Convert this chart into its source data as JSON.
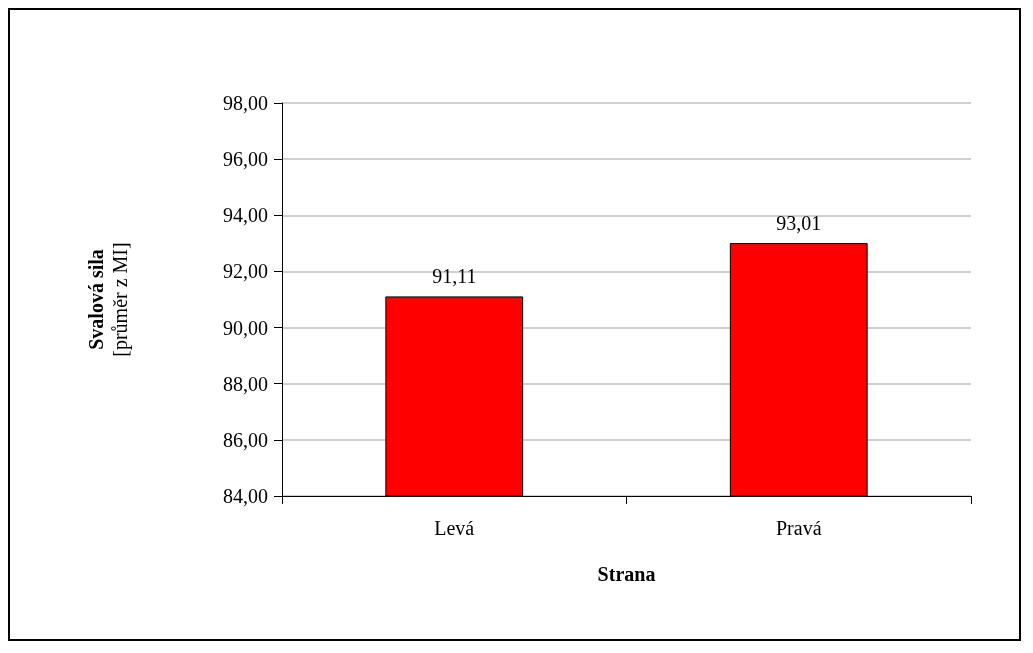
{
  "chart_data": {
    "type": "bar",
    "xlabel": "Strana",
    "ylabel": "Svalová sila\n[průměr z MI]",
    "categories": [
      "Levá",
      "Pravá"
    ],
    "values": [
      91.11,
      93.01
    ],
    "color": "#ff0000",
    "value_labels": [
      "91,11",
      "93,01"
    ],
    "ylim": [
      84,
      98
    ],
    "yticks": [
      {
        "value": 84,
        "label": "84,00"
      },
      {
        "value": 86,
        "label": "86,00"
      },
      {
        "value": 88,
        "label": "88,00"
      },
      {
        "value": 90,
        "label": "90,00"
      },
      {
        "value": 92,
        "label": "92,00"
      },
      {
        "value": 94,
        "label": "94,00"
      },
      {
        "value": 96,
        "label": "96,00"
      },
      {
        "value": 98,
        "label": "98,00"
      }
    ],
    "grid": "y"
  }
}
